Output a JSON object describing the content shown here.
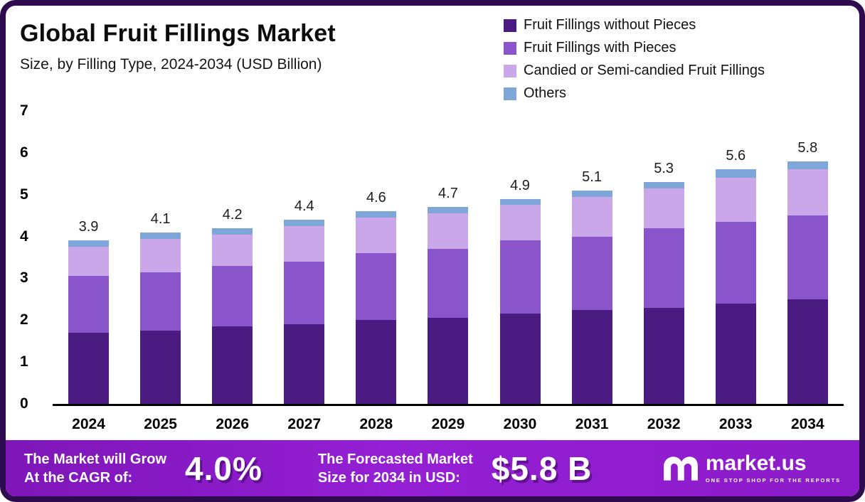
{
  "header": {
    "title": "Global Fruit Fillings Market",
    "subtitle": "Size, by Filling Type, 2024-2034 (USD Billion)"
  },
  "legend": [
    {
      "label": "Fruit Fillings without Pieces",
      "color": "#4a1c82"
    },
    {
      "label": "Fruit Fillings with Pieces",
      "color": "#8a55cb"
    },
    {
      "label": "Candied or Semi-candied Fruit Fillings",
      "color": "#c9a7e9"
    },
    {
      "label": "Others",
      "color": "#7ea6d8"
    }
  ],
  "chart_data": {
    "type": "bar",
    "stacked": true,
    "title": "Global Fruit Fillings Market Size, by Filling Type, 2024-2034 (USD Billion)",
    "categories": [
      "2024",
      "2025",
      "2026",
      "2027",
      "2028",
      "2029",
      "2030",
      "2031",
      "2032",
      "2033",
      "2034"
    ],
    "series": [
      {
        "name": "Fruit Fillings without Pieces",
        "color": "#4a1c82",
        "values": [
          1.7,
          1.75,
          1.85,
          1.9,
          2.0,
          2.05,
          2.15,
          2.25,
          2.3,
          2.4,
          2.5
        ]
      },
      {
        "name": "Fruit Fillings with Pieces",
        "color": "#8a55cb",
        "values": [
          1.35,
          1.4,
          1.45,
          1.5,
          1.6,
          1.65,
          1.75,
          1.75,
          1.9,
          1.95,
          2.0
        ]
      },
      {
        "name": "Candied or Semi-candied Fruit Fillings",
        "color": "#c9a7e9",
        "values": [
          0.7,
          0.8,
          0.75,
          0.85,
          0.85,
          0.85,
          0.85,
          0.95,
          0.95,
          1.05,
          1.1
        ]
      },
      {
        "name": "Others",
        "color": "#7ea6d8",
        "values": [
          0.15,
          0.15,
          0.15,
          0.15,
          0.15,
          0.15,
          0.15,
          0.15,
          0.15,
          0.2,
          0.2
        ]
      }
    ],
    "totals": [
      3.9,
      4.1,
      4.2,
      4.4,
      4.6,
      4.7,
      4.9,
      5.1,
      5.3,
      5.6,
      5.8
    ],
    "xlabel": "",
    "ylabel": "",
    "ylim": [
      0,
      7
    ],
    "yticks": [
      0,
      1,
      2,
      3,
      4,
      5,
      6,
      7
    ],
    "grid": false,
    "legend_position": "top-right"
  },
  "banner": {
    "cagr_label_line1": "The Market will Grow",
    "cagr_label_line2": "At the CAGR of:",
    "cagr_value": "4.0%",
    "forecast_label_line1": "The Forecasted Market",
    "forecast_label_line2": "Size for 2034 in USD:",
    "forecast_value": "$5.8 B",
    "brand": "market.us",
    "brand_tagline": "ONE STOP SHOP FOR THE REPORTS"
  }
}
